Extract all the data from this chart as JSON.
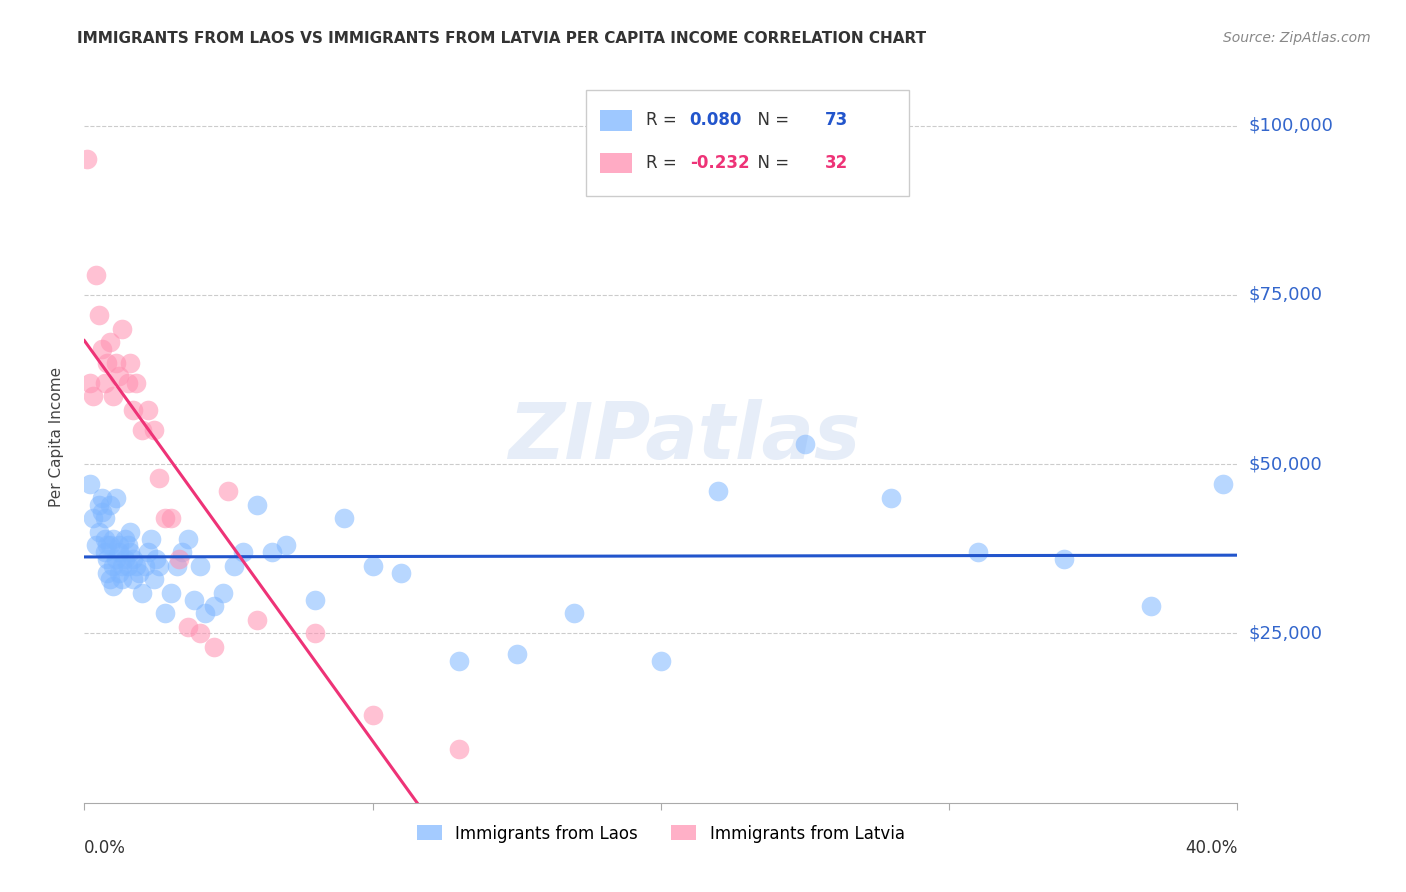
{
  "title": "IMMIGRANTS FROM LAOS VS IMMIGRANTS FROM LATVIA PER CAPITA INCOME CORRELATION CHART",
  "source": "Source: ZipAtlas.com",
  "ylabel": "Per Capita Income",
  "yticks": [
    0,
    25000,
    50000,
    75000,
    100000
  ],
  "ytick_labels": [
    "",
    "$25,000",
    "$50,000",
    "$75,000",
    "$100,000"
  ],
  "xlim": [
    0.0,
    0.4
  ],
  "ylim": [
    0,
    108000
  ],
  "legend_laos_R": "0.080",
  "legend_laos_N": "73",
  "legend_latvia_R": "-0.232",
  "legend_latvia_N": "32",
  "color_laos": "#7EB6FF",
  "color_latvia": "#FF8FB0",
  "color_laos_line": "#2255CC",
  "color_latvia_line": "#EE3377",
  "color_ytick_labels": "#3366CC",
  "laos_x": [
    0.002,
    0.003,
    0.004,
    0.005,
    0.005,
    0.006,
    0.006,
    0.007,
    0.007,
    0.007,
    0.008,
    0.008,
    0.008,
    0.009,
    0.009,
    0.009,
    0.01,
    0.01,
    0.01,
    0.011,
    0.011,
    0.012,
    0.012,
    0.012,
    0.013,
    0.013,
    0.014,
    0.014,
    0.015,
    0.015,
    0.016,
    0.016,
    0.017,
    0.017,
    0.018,
    0.019,
    0.02,
    0.021,
    0.022,
    0.023,
    0.024,
    0.025,
    0.026,
    0.028,
    0.03,
    0.032,
    0.034,
    0.036,
    0.038,
    0.04,
    0.042,
    0.045,
    0.048,
    0.052,
    0.055,
    0.06,
    0.065,
    0.07,
    0.08,
    0.09,
    0.1,
    0.11,
    0.13,
    0.15,
    0.17,
    0.2,
    0.22,
    0.25,
    0.28,
    0.31,
    0.34,
    0.37,
    0.395
  ],
  "laos_y": [
    47000,
    42000,
    38000,
    44000,
    40000,
    45000,
    43000,
    37000,
    39000,
    42000,
    36000,
    34000,
    38000,
    33000,
    38000,
    44000,
    39000,
    35000,
    32000,
    45000,
    36000,
    38000,
    34000,
    37000,
    35000,
    33000,
    36000,
    39000,
    38000,
    35000,
    37000,
    40000,
    33000,
    36000,
    35000,
    34000,
    31000,
    35000,
    37000,
    39000,
    33000,
    36000,
    35000,
    28000,
    31000,
    35000,
    37000,
    39000,
    30000,
    35000,
    28000,
    29000,
    31000,
    35000,
    37000,
    44000,
    37000,
    38000,
    30000,
    42000,
    35000,
    34000,
    21000,
    22000,
    28000,
    21000,
    46000,
    53000,
    45000,
    37000,
    36000,
    29000,
    47000
  ],
  "latvia_x": [
    0.001,
    0.002,
    0.003,
    0.004,
    0.005,
    0.006,
    0.007,
    0.008,
    0.009,
    0.01,
    0.011,
    0.012,
    0.013,
    0.015,
    0.016,
    0.017,
    0.018,
    0.02,
    0.022,
    0.024,
    0.026,
    0.028,
    0.03,
    0.033,
    0.036,
    0.04,
    0.045,
    0.05,
    0.06,
    0.08,
    0.1,
    0.13
  ],
  "latvia_y": [
    95000,
    62000,
    60000,
    78000,
    72000,
    67000,
    62000,
    65000,
    68000,
    60000,
    65000,
    63000,
    70000,
    62000,
    65000,
    58000,
    62000,
    55000,
    58000,
    55000,
    48000,
    42000,
    42000,
    36000,
    26000,
    25000,
    23000,
    46000,
    27000,
    25000,
    13000,
    8000
  ]
}
